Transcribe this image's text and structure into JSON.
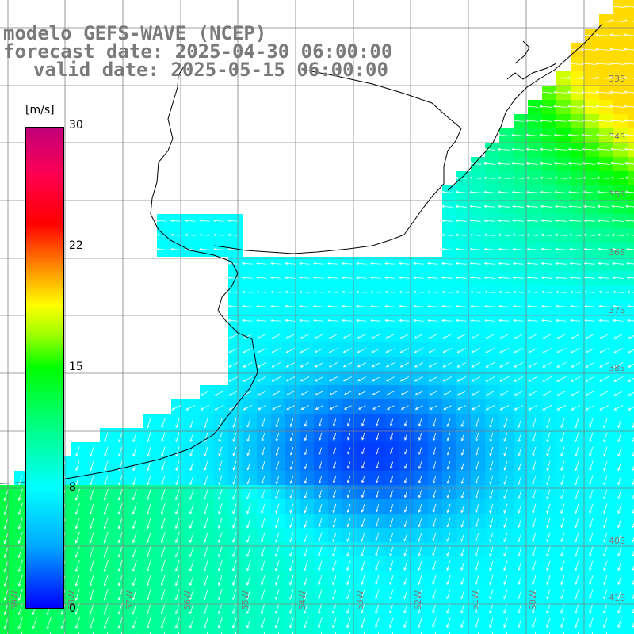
{
  "title": {
    "line1": "modelo GEFS-WAVE (NCEP)",
    "line2": "forecast date: 2025-04-30 06:00:00",
    "line3": "valid date: 2025-05-15 06:00:00"
  },
  "colorbar": {
    "unit": "[m/s]",
    "ticks": [
      "30",
      "22",
      "15",
      "8",
      "0"
    ]
  },
  "lat_labels": [
    "33S",
    "34S",
    "35S",
    "36S",
    "37S",
    "38S",
    "40S",
    "41S"
  ],
  "lon_labels": [
    "59W",
    "58W",
    "57W",
    "56W",
    "55W",
    "54W",
    "53W",
    "52W",
    "51W",
    "50W"
  ],
  "colors": {
    "land": "#ffffff",
    "grid": "#808080",
    "coast": "#000000",
    "arrow": "#ffffff"
  }
}
